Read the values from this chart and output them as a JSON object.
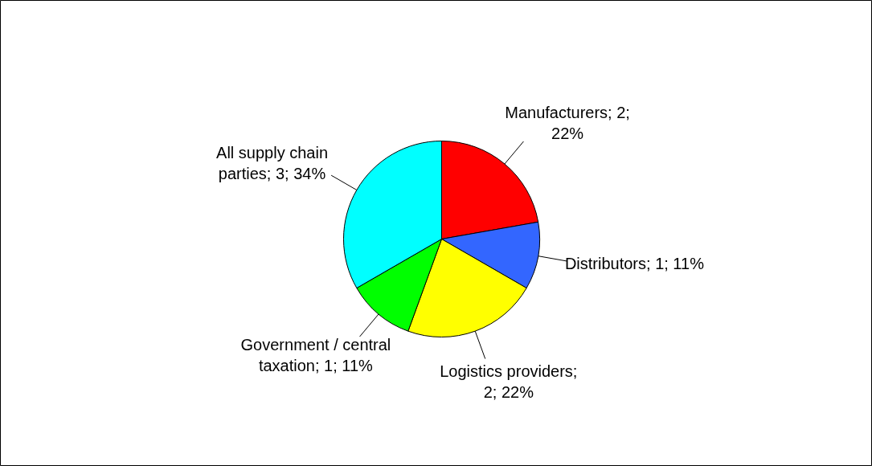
{
  "chart_data": {
    "type": "pie",
    "categories": [
      "Manufacturers",
      "Distributors",
      "Logistics providers",
      "Government / central taxation",
      "All supply chain parties"
    ],
    "values": [
      2,
      1,
      2,
      1,
      3
    ],
    "value_labels": [
      "; 2; 22%",
      "; 1; 11%",
      "; 2; 22%",
      "; 1; 11%",
      "; 3; 34%"
    ],
    "colors": [
      "#ff0000",
      "#3366ff",
      "#ffff00",
      "#00ff00",
      "#00ffff"
    ],
    "legend": false
  }
}
